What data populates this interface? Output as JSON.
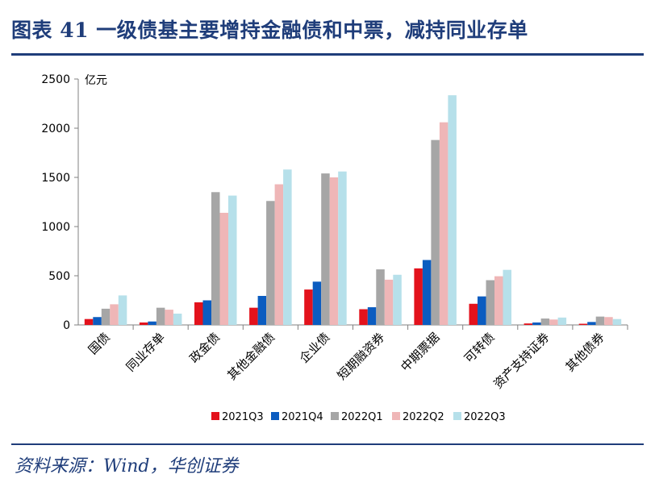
{
  "header": {
    "title": "图表 41  一级债基主要增持金融债和中票，减持同业存单"
  },
  "footer": {
    "source": "资料来源：Wind，华创证券"
  },
  "chart_data": {
    "type": "bar",
    "title": "",
    "ylabel": "",
    "unit_label": "亿元",
    "ylim": [
      0,
      2500
    ],
    "yticks": [
      0,
      500,
      1000,
      1500,
      2000,
      2500
    ],
    "categories": [
      "国债",
      "同业存单",
      "政金债",
      "其他金融债",
      "企业债",
      "短期融资券",
      "中期票据",
      "可转债",
      "资产支持证券",
      "其他债券"
    ],
    "series": [
      {
        "name": "2021Q3",
        "color": "#e3121c",
        "values": [
          60,
          25,
          230,
          175,
          360,
          160,
          575,
          215,
          15,
          12
        ]
      },
      {
        "name": "2021Q4",
        "color": "#0b5cc0",
        "values": [
          80,
          35,
          250,
          295,
          440,
          180,
          660,
          290,
          25,
          30
        ]
      },
      {
        "name": "2022Q1",
        "color": "#a6a6a6",
        "values": [
          165,
          175,
          1350,
          1260,
          1540,
          565,
          1880,
          455,
          65,
          85
        ]
      },
      {
        "name": "2022Q2",
        "color": "#efb6b7",
        "values": [
          210,
          155,
          1140,
          1430,
          1500,
          460,
          2060,
          495,
          55,
          80
        ]
      },
      {
        "name": "2022Q3",
        "color": "#b6e0ea",
        "values": [
          300,
          115,
          1315,
          1580,
          1560,
          510,
          2335,
          560,
          75,
          60
        ]
      }
    ],
    "legend_position": "bottom",
    "grid": false
  }
}
